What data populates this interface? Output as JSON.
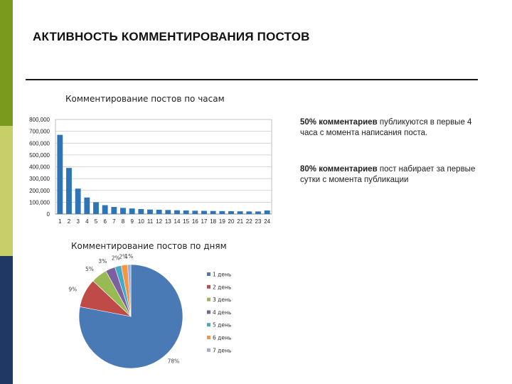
{
  "slide": {
    "title": "АКТИВНОСТЬ КОММЕНТИРОВАНИЯ ПОСТОВ",
    "accent_colors": [
      "#7a9a1d",
      "#c7cf68",
      "#1f3864"
    ]
  },
  "notes": [
    {
      "bold": "50% комментариев",
      "text": " публикуются в первые 4 часа с момента написания поста."
    },
    {
      "bold": "80% комментариев",
      "text": " пост набирает за первые сутки с момента публикации"
    }
  ],
  "chart_data": [
    {
      "type": "bar",
      "title": "Комментирование постов по часам",
      "xlabel": "",
      "ylabel": "",
      "categories": [
        "1",
        "2",
        "3",
        "4",
        "5",
        "6",
        "7",
        "8",
        "9",
        "10",
        "11",
        "12",
        "13",
        "14",
        "15",
        "16",
        "17",
        "18",
        "19",
        "20",
        "21",
        "22",
        "23",
        "24"
      ],
      "values": [
        670000,
        390000,
        215000,
        140000,
        100000,
        75000,
        60000,
        52000,
        47000,
        42000,
        38000,
        36000,
        34000,
        32000,
        30000,
        28000,
        27000,
        26000,
        25000,
        24000,
        23000,
        22000,
        22000,
        30000
      ],
      "ylim": [
        0,
        800000
      ],
      "yticks": [
        "0",
        "100,000",
        "200,000",
        "300,000",
        "400,000",
        "500,000",
        "600,000",
        "700,000",
        "800,000"
      ],
      "grid": true,
      "color": "#2e75b6"
    },
    {
      "type": "pie",
      "title": "Комментирование постов по дням",
      "labels": [
        "1 день",
        "2 день",
        "3 день",
        "4 день",
        "5 день",
        "6 день",
        "7 день"
      ],
      "values": [
        78,
        9,
        5,
        3,
        2,
        2,
        1
      ],
      "data_labels": [
        "78%",
        "9%",
        "5%",
        "3%",
        "2%",
        "2%",
        "1%"
      ],
      "colors": [
        "#4a7ab5",
        "#be4b48",
        "#98b954",
        "#7d60a0",
        "#46aac5",
        "#f69545",
        "#9dafd4"
      ],
      "legend": "right"
    }
  ]
}
